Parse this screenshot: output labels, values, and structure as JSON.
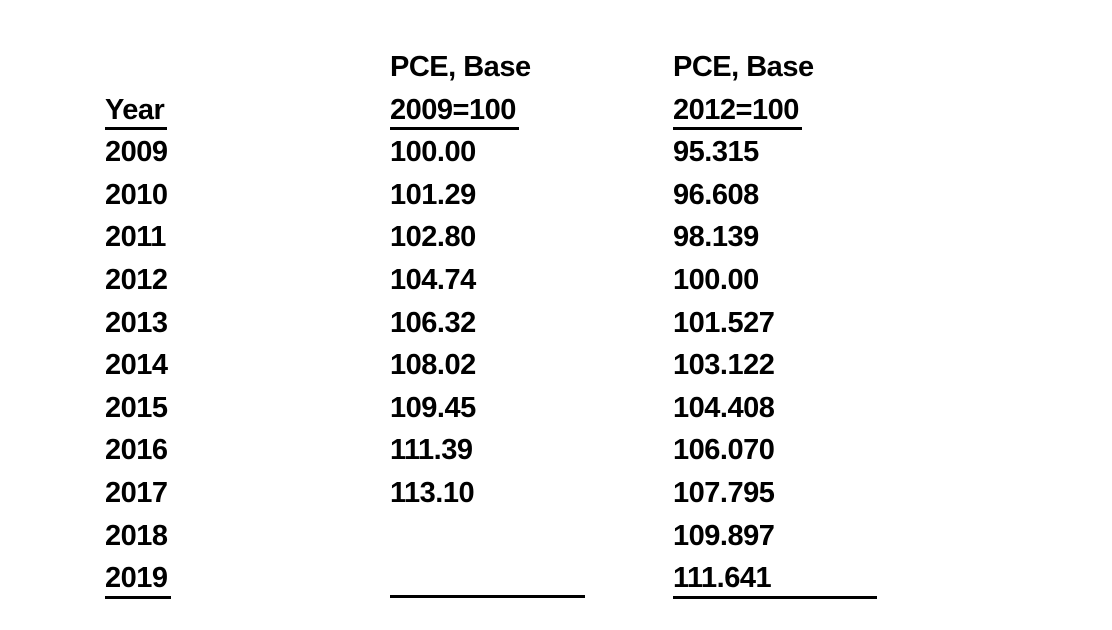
{
  "page": {
    "background_color": "#ffffff",
    "text_color": "#000000"
  },
  "table": {
    "columns": [
      {
        "header_line1": "",
        "header_line2": "Year"
      },
      {
        "header_line1": "PCE, Base",
        "header_line2": "2009=100"
      },
      {
        "header_line1": "PCE, Base",
        "header_line2": "2012=100"
      }
    ],
    "rows": [
      {
        "year": "2009",
        "pce_base_2009": "100.00",
        "pce_base_2012": "95.315"
      },
      {
        "year": "2010",
        "pce_base_2009": "101.29",
        "pce_base_2012": "96.608"
      },
      {
        "year": "2011",
        "pce_base_2009": "102.80",
        "pce_base_2012": "98.139"
      },
      {
        "year": "2012",
        "pce_base_2009": "104.74",
        "pce_base_2012": "100.00"
      },
      {
        "year": "2013",
        "pce_base_2009": "106.32",
        "pce_base_2012": "101.527"
      },
      {
        "year": "2014",
        "pce_base_2009": "108.02",
        "pce_base_2012": "103.122"
      },
      {
        "year": "2015",
        "pce_base_2009": "109.45",
        "pce_base_2012": "104.408"
      },
      {
        "year": "2016",
        "pce_base_2009": "111.39",
        "pce_base_2012": "106.070"
      },
      {
        "year": "2017",
        "pce_base_2009": "113.10",
        "pce_base_2012": "107.795"
      },
      {
        "year": "2018",
        "pce_base_2009": "",
        "pce_base_2012": "109.897"
      },
      {
        "year": "2019",
        "pce_base_2009": "",
        "pce_base_2012": "111.641"
      }
    ]
  }
}
